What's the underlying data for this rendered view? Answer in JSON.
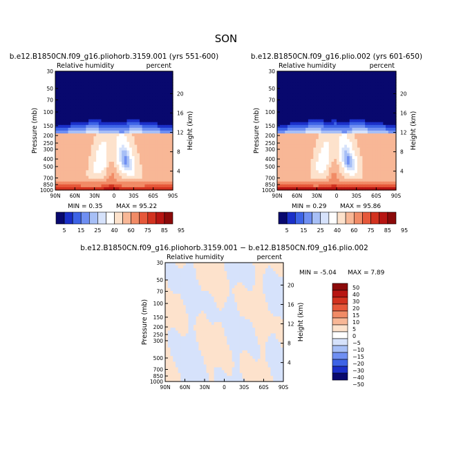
{
  "title": "SON",
  "chart_data": [
    {
      "type": "heatmap",
      "title": "b.e12.B1850CN.f09_g16.pliohorb.3159.001 (yrs 551-600)",
      "left_label": "Relative humidity",
      "right_label": "percent",
      "ylabel": "Pressure (mb)",
      "y2label": "Height (km)",
      "x_ticks": [
        "90N",
        "60N",
        "30N",
        "0",
        "30S",
        "60S",
        "90S"
      ],
      "y_ticks": [
        "30",
        "50",
        "70",
        "100",
        "150",
        "200",
        "250",
        "300",
        "400",
        "500",
        "700",
        "850",
        "1000"
      ],
      "y2_ticks": [
        "20",
        "16",
        "12",
        "8",
        "4"
      ],
      "min_text": "MIN =    0.35",
      "max_text": "MAX =   95.22",
      "min": 0.35,
      "max": 95.22
    },
    {
      "type": "heatmap",
      "title": "b.e12.B1850CN.f09_g16.plio.002 (yrs 601-650)",
      "left_label": "Relative humidity",
      "right_label": "percent",
      "ylabel": "Pressure (mb)",
      "y2label": "Height (km)",
      "x_ticks": [
        "90N",
        "60N",
        "30N",
        "0",
        "30S",
        "60S",
        "90S"
      ],
      "y_ticks": [
        "30",
        "50",
        "70",
        "100",
        "150",
        "200",
        "250",
        "300",
        "400",
        "500",
        "700",
        "850",
        "1000"
      ],
      "y2_ticks": [
        "20",
        "16",
        "12",
        "8",
        "4"
      ],
      "min_text": "MIN =    0.29",
      "max_text": "MAX =   95.86",
      "min": 0.29,
      "max": 95.86
    },
    {
      "type": "heatmap",
      "title": "b.e12.B1850CN.f09_g16.pliohorb.3159.001 − b.e12.B1850CN.f09_g16.plio.002",
      "left_label": "Relative humidity",
      "right_label": "percent",
      "ylabel": "Pressure (mb)",
      "y2label": "Height (km)",
      "x_ticks": [
        "90N",
        "60N",
        "30N",
        "0",
        "30S",
        "60S",
        "90S"
      ],
      "y_ticks": [
        "30",
        "50",
        "70",
        "100",
        "150",
        "200",
        "250",
        "300",
        "500",
        "700",
        "850",
        "1000"
      ],
      "y2_ticks": [
        "20",
        "16",
        "12",
        "8",
        "4"
      ],
      "min_text": "MIN =   -5.04",
      "max_text": "MAX =    7.89",
      "min": -5.04,
      "max": 7.89
    }
  ],
  "legends": {
    "absolute": {
      "labels": [
        "5",
        "15",
        "25",
        "40",
        "60",
        "75",
        "85",
        "95"
      ],
      "colors": [
        "#08086e",
        "#1a2fc8",
        "#3d63e6",
        "#6f8ff2",
        "#a7bff6",
        "#d6e2fb",
        "#ffffff",
        "#fde2cc",
        "#f8b796",
        "#f18b66",
        "#e6583a",
        "#d2321f",
        "#b71512",
        "#8b0a0a"
      ]
    },
    "difference": {
      "labels": [
        "50",
        "40",
        "30",
        "20",
        "15",
        "10",
        "5",
        "0",
        "−5",
        "−10",
        "−15",
        "−20",
        "−30",
        "−40",
        "−50"
      ],
      "colors": [
        "#8b0a0a",
        "#b71512",
        "#d2321f",
        "#e6583a",
        "#f18b66",
        "#f8b796",
        "#fde2cc",
        "#ffffff",
        "#d6e2fb",
        "#a7bff6",
        "#6f8ff2",
        "#3d63e6",
        "#1a2fc8",
        "#08086e"
      ]
    }
  }
}
